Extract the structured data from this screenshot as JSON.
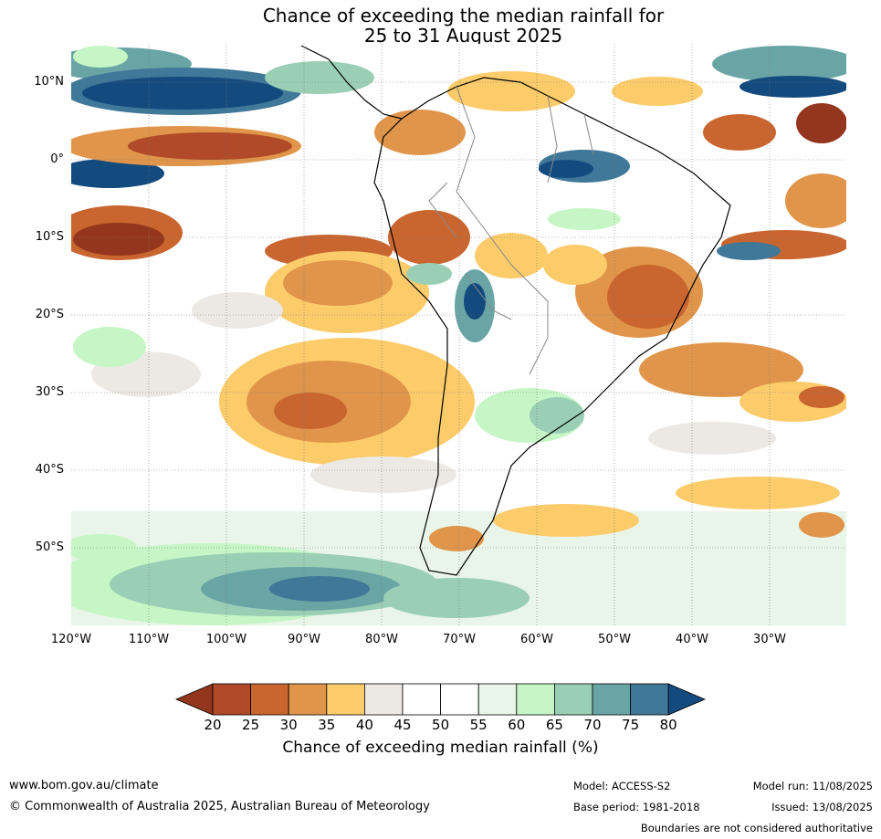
{
  "title": {
    "line1": "Chance of exceeding the median rainfall for",
    "line2": "25 to 31 August 2025"
  },
  "map": {
    "lat_labels": [
      "10°N",
      "0°",
      "10°S",
      "20°S",
      "30°S",
      "40°S",
      "50°S"
    ],
    "lon_labels": [
      "120°W",
      "110°W",
      "100°W",
      "90°W",
      "80°W",
      "70°W",
      "60°W",
      "50°W",
      "40°W",
      "30°W"
    ],
    "lon_range": [
      -120,
      -20
    ],
    "lat_range": [
      -60,
      15
    ]
  },
  "colorbar": {
    "ticks": [
      "20",
      "25",
      "30",
      "35",
      "40",
      "45",
      "50",
      "55",
      "60",
      "65",
      "70",
      "75",
      "80"
    ],
    "colors": [
      "#93361d",
      "#b04a28",
      "#c9652f",
      "#e0954a",
      "#fccb6a",
      "#ece9e4",
      "#ffffff",
      "#ffffff",
      "#e8f5e8",
      "#c6f6c6",
      "#9acfb5",
      "#6aa5a5",
      "#3f7898",
      "#134b7f"
    ],
    "label": "Chance of exceeding median rainfall (%)"
  },
  "footer": {
    "website": "www.bom.gov.au/climate",
    "copyright": "© Commonwealth of Australia 2025, Australian Bureau of Meteorology",
    "model": "Model: ACCESS-S2",
    "base_period": "Base period: 1981-2018",
    "model_run": "Model run: 11/08/2025",
    "issued": "Issued: 13/08/2025",
    "boundaries_note": "Boundaries are not considered authoritative"
  }
}
